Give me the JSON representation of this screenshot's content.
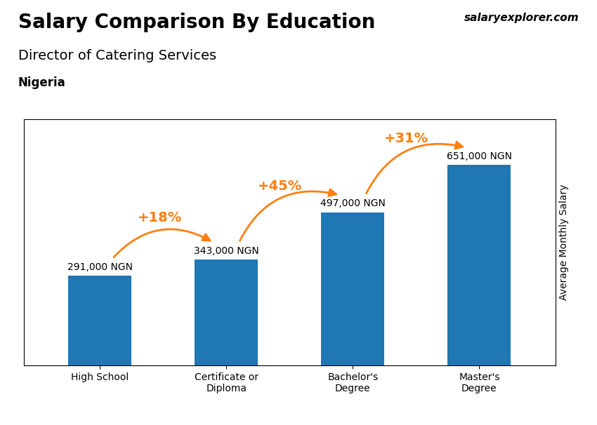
{
  "chart_data": {
    "type": "bar",
    "title": "Salary Comparison By Education",
    "subtitle": "Director of Catering Services",
    "ylabel": "Average Monthly Salary",
    "categories": [
      "High School",
      "Certificate or\nDiploma",
      "Bachelor's\nDegree",
      "Master's\nDegree"
    ],
    "values": [
      291000,
      343000,
      497000,
      651000
    ],
    "value_labels": [
      "291,000 NGN",
      "343,000 NGN",
      "497,000 NGN",
      "651,000 NGN"
    ],
    "data_labels": true,
    "ylim": [
      0,
      800000
    ],
    "yticks": [],
    "tick_labels": "x",
    "grid": false,
    "annotations": [
      {
        "from": "High School",
        "to": "Certificate or\nDiploma",
        "text": "+18%"
      },
      {
        "from": "Certificate or\nDiploma",
        "to": "Bachelor's\nDegree",
        "text": "+45%"
      },
      {
        "from": "Bachelor's\nDegree",
        "to": "Master's\nDegree",
        "text": "+31%"
      },
      {
        "text": "Nigeria"
      },
      {
        "text": "salaryexplorer.com"
      }
    ]
  }
}
